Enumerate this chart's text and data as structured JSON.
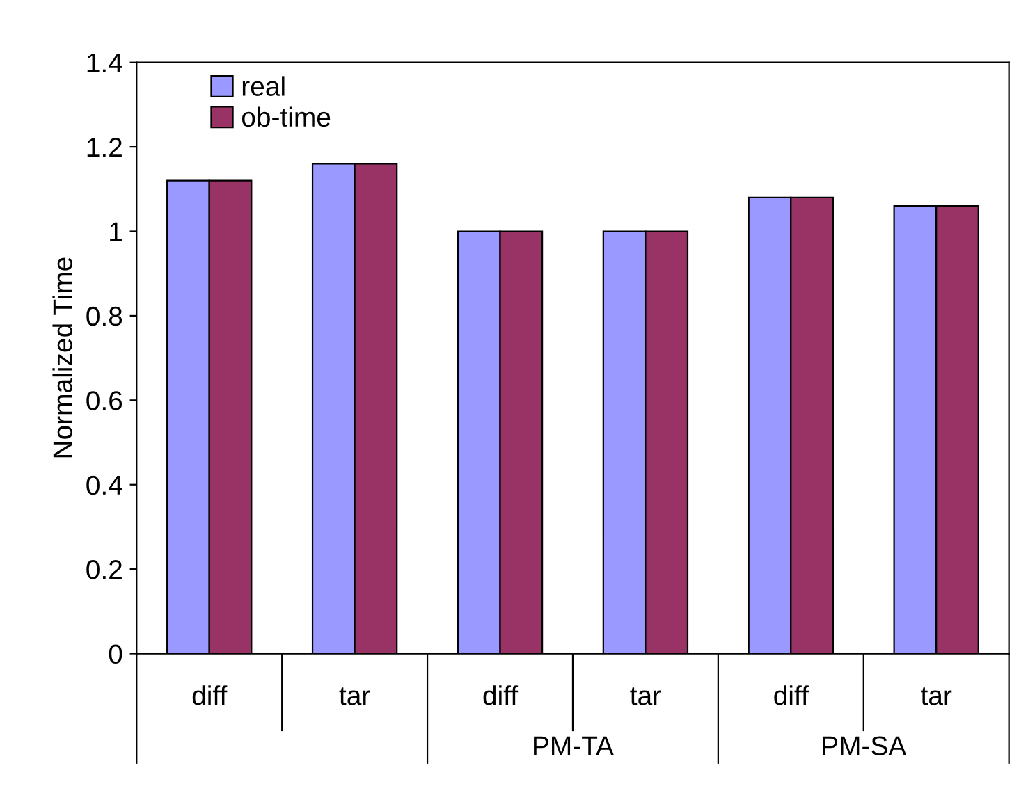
{
  "chart_data": {
    "type": "bar",
    "ylabel": "Normalized Time",
    "categories": [
      "diff",
      "tar",
      "diff",
      "tar",
      "diff",
      "tar"
    ],
    "annotations": [
      null,
      "PM-TA",
      "PM-SA"
    ],
    "series": [
      {
        "name": "real",
        "color": "#9999ff",
        "values": [
          1.12,
          1.16,
          1.0,
          1.0,
          1.08,
          1.06
        ]
      },
      {
        "name": "ob-time",
        "color": "#993366",
        "values": [
          1.12,
          1.16,
          1.0,
          1.0,
          1.08,
          1.06
        ]
      }
    ],
    "ylim": [
      0,
      1.4
    ],
    "yticks": [
      0,
      {
        "value": 0.2,
        "label": "0.2"
      },
      {
        "value": 0.4,
        "label": "0.4"
      },
      {
        "value": 0.6,
        "label": "0.6"
      },
      {
        "value": 0.8,
        "label": "0.8"
      },
      1,
      {
        "value": 1.2,
        "label": "1.2"
      },
      {
        "value": 1.4,
        "label": "1.4"
      }
    ],
    "grid": false,
    "legend": "top left"
  }
}
